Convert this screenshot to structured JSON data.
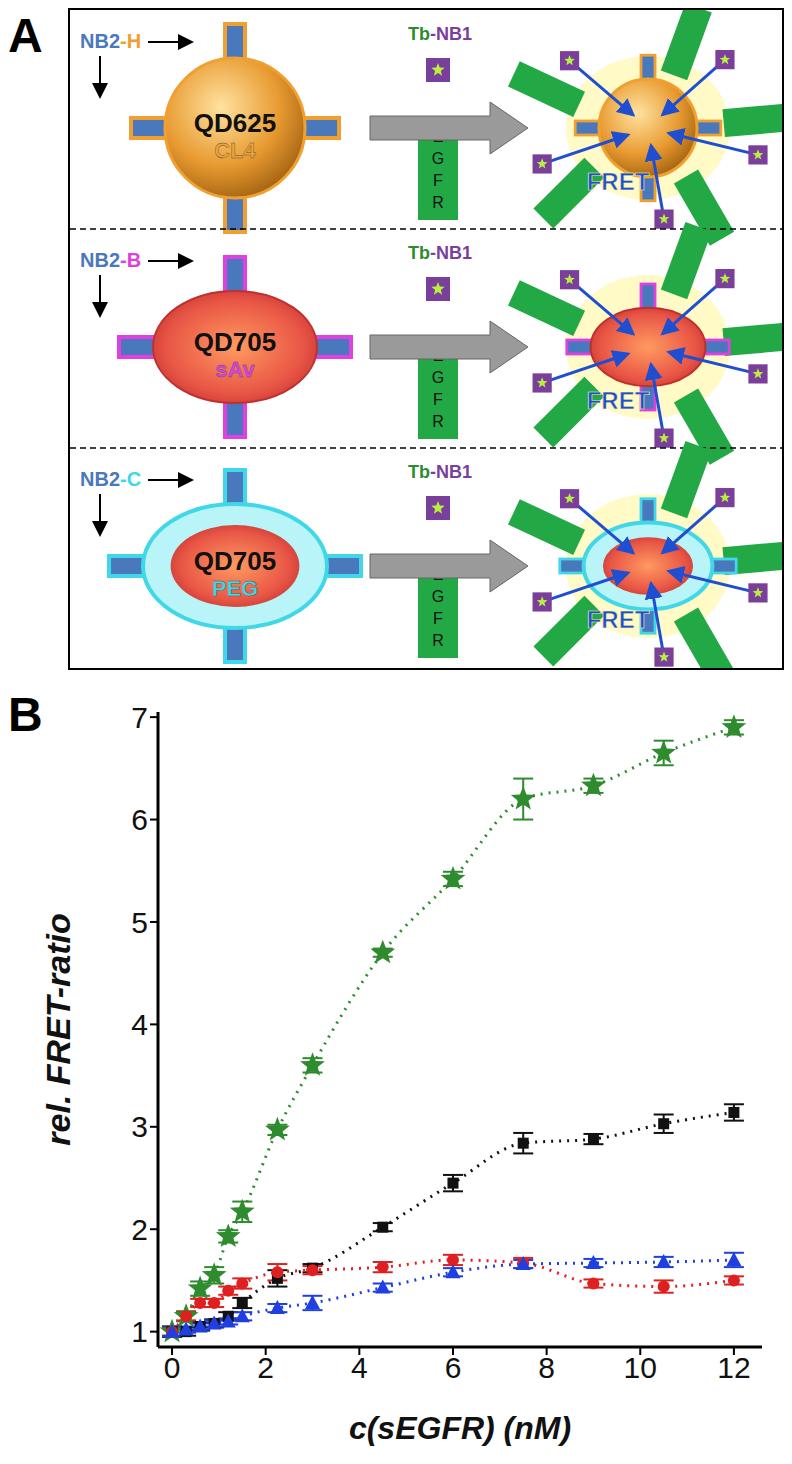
{
  "diagram": {
    "label": "A",
    "rows": [
      {
        "nb": "NB2",
        "tag": "-H",
        "qd": "QD625",
        "coating": "CL4",
        "shape": "sphere",
        "color": "#f0a030"
      },
      {
        "nb": "NB2",
        "tag": "-B",
        "qd": "QD705",
        "coating": "sAv",
        "shape": "ellipse",
        "color": "#e040e0"
      },
      {
        "nb": "NB2",
        "tag": "-C",
        "qd": "QD705",
        "coating": "PEG",
        "shape": "shell",
        "color": "#40d8e8"
      }
    ],
    "donor": {
      "name": "Tb",
      "tag": "-NB1"
    },
    "receptor": "EGFR",
    "signal": "FRET"
  },
  "chart_data": {
    "type": "line",
    "title": "B",
    "xlabel": "c(sEGFR) (nM)",
    "ylabel": "rel. FRET-ratio",
    "x": [
      0,
      0.3,
      0.6,
      0.9,
      1.2,
      1.5,
      2.25,
      3,
      4.5,
      6,
      7.5,
      9,
      10.5,
      12
    ],
    "xlim": [
      -0.3,
      12.6
    ],
    "xticks": [
      0,
      2,
      4,
      6,
      8,
      10,
      12
    ],
    "ylim": [
      0.85,
      7.05
    ],
    "yticks": [
      1,
      2,
      3,
      4,
      5,
      6,
      7
    ],
    "series": [
      {
        "color": "#2e8b2e",
        "marker": "star",
        "line_style": "dotted",
        "values": [
          1.0,
          1.15,
          1.42,
          1.55,
          1.93,
          2.17,
          2.97,
          3.6,
          4.7,
          5.42,
          6.2,
          6.33,
          6.65,
          6.9
        ],
        "errors": [
          0.05,
          0.05,
          0.07,
          0.08,
          0.06,
          0.1,
          0.05,
          0.07,
          0.04,
          0.07,
          0.2,
          0.07,
          0.12,
          0.07
        ]
      },
      {
        "color": "#111111",
        "marker": "square",
        "line_style": "dotted",
        "values": [
          1.0,
          1.0,
          1.05,
          1.08,
          1.15,
          1.28,
          1.52,
          1.62,
          2.02,
          2.45,
          2.84,
          2.88,
          3.03,
          3.14
        ],
        "errors": [
          0.05,
          0.04,
          0.04,
          0.04,
          0.04,
          0.05,
          0.08,
          0.04,
          0.04,
          0.08,
          0.1,
          0.05,
          0.09,
          0.08
        ]
      },
      {
        "color": "#e02020",
        "marker": "circle",
        "line_style": "dotted",
        "values": [
          1.0,
          1.15,
          1.28,
          1.28,
          1.4,
          1.47,
          1.58,
          1.6,
          1.63,
          1.7,
          1.67,
          1.47,
          1.44,
          1.5
        ],
        "errors": [
          0.04,
          0.04,
          0.04,
          0.04,
          0.04,
          0.05,
          0.08,
          0.04,
          0.05,
          0.05,
          0.05,
          0.04,
          0.06,
          0.04
        ]
      },
      {
        "color": "#1f3fe0",
        "marker": "triangle",
        "line_style": "dotted",
        "values": [
          1.0,
          1.02,
          1.05,
          1.08,
          1.1,
          1.15,
          1.23,
          1.28,
          1.43,
          1.58,
          1.66,
          1.67,
          1.68,
          1.7
        ],
        "errors": [
          0.04,
          0.03,
          0.03,
          0.03,
          0.03,
          0.04,
          0.04,
          0.07,
          0.04,
          0.04,
          0.04,
          0.04,
          0.05,
          0.07
        ]
      }
    ]
  }
}
